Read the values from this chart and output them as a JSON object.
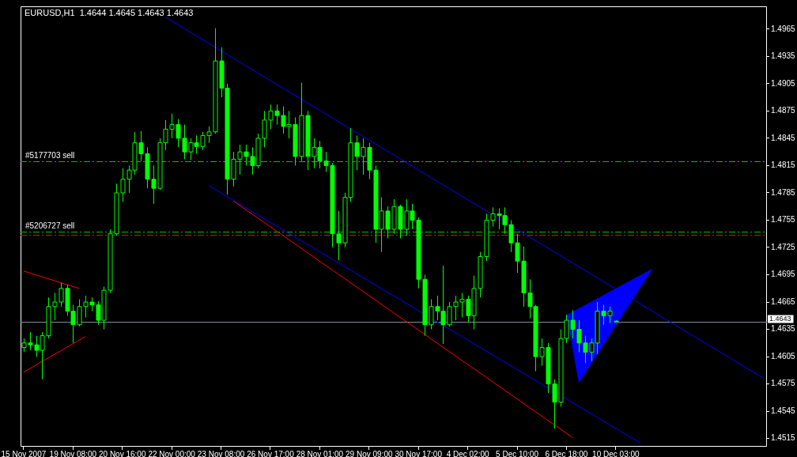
{
  "chart_data": {
    "type": "candlestick",
    "title": "EURUSD,H1  1.4644 1.4645 1.4643 1.4643",
    "color": "#00ff00",
    "categories": [
      "15 Nov 2007",
      null,
      null,
      null,
      null,
      null,
      null,
      null,
      "19 Nov 08:00",
      null,
      null,
      null,
      null,
      null,
      null,
      null,
      "20 Nov 16:00",
      null,
      null,
      null,
      null,
      null,
      null,
      null,
      "22 Nov 00:00",
      null,
      null,
      null,
      null,
      null,
      null,
      null,
      "23 Nov 08:00",
      null,
      null,
      null,
      null,
      null,
      null,
      null,
      "26 Nov 17:00",
      null,
      null,
      null,
      null,
      null,
      null,
      null,
      "28 Nov 01:00",
      null,
      null,
      null,
      null,
      null,
      null,
      null,
      "29 Nov 09:00",
      null,
      null,
      null,
      null,
      null,
      null,
      null,
      "30 Nov 17:00",
      null,
      null,
      null,
      null,
      null,
      null,
      null,
      "4 Dec 02:00",
      null,
      null,
      null,
      null,
      null,
      null,
      null,
      "5 Dec 10:00",
      null,
      null,
      null,
      null,
      null,
      null,
      null,
      "6 Dec 18:00",
      null,
      null,
      null,
      null,
      null,
      null,
      null,
      "10 Dec 03:00",
      null,
      null,
      null,
      null,
      null,
      null,
      null,
      null,
      null,
      null,
      null,
      null,
      null,
      null,
      null,
      null,
      null,
      null,
      null,
      null,
      null,
      null,
      null,
      null
    ],
    "ohlc": [
      [
        1.4615,
        1.4625,
        1.461,
        1.462
      ],
      [
        1.462,
        1.4632,
        1.4612,
        1.4618
      ],
      [
        1.4618,
        1.4628,
        1.4605,
        1.4612
      ],
      [
        1.4612,
        1.4632,
        1.458,
        1.4628
      ],
      [
        1.4628,
        1.467,
        1.4625,
        1.466
      ],
      [
        1.466,
        1.4675,
        1.4645,
        1.4665
      ],
      [
        1.4665,
        1.4686,
        1.466,
        1.468
      ],
      [
        1.468,
        1.4684,
        1.465,
        1.4655
      ],
      [
        1.4655,
        1.4662,
        1.462,
        1.464
      ],
      [
        1.464,
        1.4668,
        1.4638,
        1.466
      ],
      [
        1.466,
        1.4672,
        1.4648,
        1.4665
      ],
      [
        1.4665,
        1.467,
        1.4655,
        1.4662
      ],
      [
        1.4662,
        1.4666,
        1.464,
        1.4645
      ],
      [
        1.4645,
        1.4682,
        1.4635,
        1.4678
      ],
      [
        1.4678,
        1.4745,
        1.4675,
        1.474
      ],
      [
        1.474,
        1.4795,
        1.4738,
        1.4785
      ],
      [
        1.4785,
        1.4812,
        1.4775,
        1.48
      ],
      [
        1.48,
        1.4815,
        1.4785,
        1.481
      ],
      [
        1.481,
        1.4852,
        1.4805,
        1.484
      ],
      [
        1.484,
        1.4853,
        1.482,
        1.4828
      ],
      [
        1.4828,
        1.4835,
        1.479,
        1.48
      ],
      [
        1.48,
        1.4815,
        1.4773,
        1.479
      ],
      [
        1.479,
        1.4845,
        1.4788,
        1.484
      ],
      [
        1.484,
        1.4865,
        1.4832,
        1.4855
      ],
      [
        1.4855,
        1.4872,
        1.4845,
        1.486
      ],
      [
        1.486,
        1.4866,
        1.4835,
        1.4845
      ],
      [
        1.4845,
        1.486,
        1.4822,
        1.483
      ],
      [
        1.483,
        1.4845,
        1.4821,
        1.484
      ],
      [
        1.484,
        1.4848,
        1.4828,
        1.4836
      ],
      [
        1.4836,
        1.4852,
        1.4832,
        1.4848
      ],
      [
        1.4848,
        1.4858,
        1.484,
        1.4852
      ],
      [
        1.4852,
        1.4966,
        1.485,
        1.493
      ],
      [
        1.493,
        1.4945,
        1.489,
        1.49
      ],
      [
        1.49,
        1.4905,
        1.4783,
        1.48
      ],
      [
        1.48,
        1.483,
        1.4792,
        1.4822
      ],
      [
        1.4822,
        1.4838,
        1.4805,
        1.483
      ],
      [
        1.483,
        1.4838,
        1.4815,
        1.4825
      ],
      [
        1.4825,
        1.4835,
        1.4805,
        1.4815
      ],
      [
        1.4815,
        1.485,
        1.4812,
        1.4845
      ],
      [
        1.4845,
        1.4875,
        1.4835,
        1.4865
      ],
      [
        1.4865,
        1.4882,
        1.4855,
        1.4875
      ],
      [
        1.4875,
        1.4882,
        1.486,
        1.487
      ],
      [
        1.487,
        1.488,
        1.485,
        1.4858
      ],
      [
        1.4858,
        1.4875,
        1.4845,
        1.486
      ],
      [
        1.486,
        1.4868,
        1.4815,
        1.4825
      ],
      [
        1.4825,
        1.4906,
        1.482,
        1.487
      ],
      [
        1.487,
        1.4875,
        1.481,
        1.4825
      ],
      [
        1.4825,
        1.4845,
        1.4812,
        1.4835
      ],
      [
        1.4835,
        1.4842,
        1.4812,
        1.482
      ],
      [
        1.482,
        1.483,
        1.4808,
        1.4815
      ],
      [
        1.4815,
        1.4818,
        1.4725,
        1.474
      ],
      [
        1.474,
        1.4765,
        1.4711,
        1.473
      ],
      [
        1.473,
        1.4785,
        1.4725,
        1.478
      ],
      [
        1.478,
        1.4856,
        1.4775,
        1.484
      ],
      [
        1.484,
        1.4848,
        1.481,
        1.4825
      ],
      [
        1.4825,
        1.4845,
        1.4805,
        1.4835
      ],
      [
        1.4835,
        1.484,
        1.48,
        1.481
      ],
      [
        1.481,
        1.4815,
        1.473,
        1.4745
      ],
      [
        1.4745,
        1.478,
        1.472,
        1.4765
      ],
      [
        1.4765,
        1.477,
        1.4735,
        1.4745
      ],
      [
        1.4745,
        1.4778,
        1.474,
        1.477
      ],
      [
        1.477,
        1.4772,
        1.4735,
        1.4745
      ],
      [
        1.4745,
        1.4778,
        1.4738,
        1.4765
      ],
      [
        1.4765,
        1.4773,
        1.4745,
        1.4755
      ],
      [
        1.4755,
        1.4758,
        1.468,
        1.469
      ],
      [
        1.469,
        1.4695,
        1.4628,
        1.464
      ],
      [
        1.464,
        1.4668,
        1.4635,
        1.466
      ],
      [
        1.466,
        1.4672,
        1.4645,
        1.4655
      ],
      [
        1.4655,
        1.4705,
        1.4619,
        1.464
      ],
      [
        1.464,
        1.4665,
        1.4638,
        1.466
      ],
      [
        1.466,
        1.4672,
        1.4645,
        1.4665
      ],
      [
        1.4665,
        1.4675,
        1.4648,
        1.4668
      ],
      [
        1.4668,
        1.4672,
        1.4643,
        1.465
      ],
      [
        1.465,
        1.4694,
        1.4635,
        1.468
      ],
      [
        1.468,
        1.472,
        1.467,
        1.4715
      ],
      [
        1.4715,
        1.4762,
        1.471,
        1.4755
      ],
      [
        1.4755,
        1.4769,
        1.4748,
        1.4762
      ],
      [
        1.4762,
        1.4768,
        1.4745,
        1.476
      ],
      [
        1.476,
        1.4769,
        1.474,
        1.475
      ],
      [
        1.475,
        1.4755,
        1.472,
        1.473
      ],
      [
        1.473,
        1.474,
        1.4697,
        1.471
      ],
      [
        1.471,
        1.4726,
        1.466,
        1.4675
      ],
      [
        1.4675,
        1.469,
        1.4647,
        1.466
      ],
      [
        1.466,
        1.4662,
        1.4589,
        1.4605
      ],
      [
        1.4605,
        1.4625,
        1.4595,
        1.4615
      ],
      [
        1.4615,
        1.462,
        1.4565,
        1.4575
      ],
      [
        1.4575,
        1.458,
        1.4526,
        1.4555
      ],
      [
        1.4555,
        1.4635,
        1.455,
        1.4625
      ],
      [
        1.4625,
        1.4651,
        1.462,
        1.4645
      ],
      [
        1.4645,
        1.4656,
        1.4625,
        1.4635
      ],
      [
        1.4635,
        1.4645,
        1.461,
        1.462
      ],
      [
        1.462,
        1.4628,
        1.4598,
        1.461
      ],
      [
        1.461,
        1.4625,
        1.46,
        1.462
      ],
      [
        1.462,
        1.4665,
        1.4608,
        1.4655
      ],
      [
        1.4655,
        1.4662,
        1.464,
        1.465
      ],
      [
        1.465,
        1.466,
        1.4642,
        1.4655
      ],
      [
        1.4644,
        1.4645,
        1.4643,
        1.4643
      ],
      null,
      null,
      null,
      null,
      null,
      null,
      null,
      null,
      null,
      null,
      null,
      null,
      null,
      null,
      null,
      null,
      null,
      null,
      null,
      null,
      null,
      null,
      null,
      null
    ],
    "series": [
      {
        "type": "line",
        "color": "#0000ff",
        "values": [
          null,
          null,
          null,
          null,
          null,
          null,
          null,
          null,
          null,
          null,
          null,
          null,
          null,
          null,
          null,
          null,
          null,
          null,
          null,
          null,
          null,
          null,
          null,
          1.4978,
          null,
          null,
          null,
          null,
          null,
          null,
          null,
          null,
          null,
          null,
          null,
          null,
          null,
          null,
          null,
          null,
          null,
          null,
          null,
          null,
          null,
          null,
          null,
          null,
          null,
          null,
          null,
          null,
          null,
          null,
          null,
          null,
          null,
          null,
          null,
          null,
          null,
          null,
          null,
          null,
          null,
          null,
          null,
          null,
          null,
          null,
          null,
          null,
          null,
          null,
          null,
          null,
          null,
          null,
          null,
          null,
          null,
          null,
          null,
          null,
          null,
          null,
          null,
          null,
          null,
          null,
          null,
          null,
          null,
          null,
          null,
          null,
          null,
          null,
          null,
          null,
          null,
          null,
          null,
          null,
          null,
          null,
          null,
          null,
          null,
          null,
          null,
          null,
          null,
          null,
          null,
          null,
          null,
          null,
          null,
          null,
          1.4581
        ]
      },
      {
        "type": "line",
        "color": "#0000ff",
        "values": [
          null,
          null,
          null,
          null,
          null,
          null,
          null,
          null,
          null,
          null,
          null,
          null,
          null,
          null,
          null,
          null,
          null,
          null,
          null,
          null,
          null,
          null,
          null,
          null,
          null,
          null,
          null,
          null,
          null,
          null,
          1.4793,
          null,
          null,
          null,
          null,
          null,
          null,
          null,
          null,
          null,
          null,
          null,
          null,
          null,
          null,
          null,
          null,
          null,
          null,
          null,
          null,
          null,
          null,
          null,
          null,
          null,
          null,
          null,
          null,
          null,
          null,
          null,
          null,
          null,
          null,
          null,
          null,
          null,
          null,
          null,
          null,
          null,
          null,
          null,
          null,
          null,
          null,
          null,
          null,
          null,
          null,
          null,
          null,
          null,
          null,
          null,
          null,
          null,
          null,
          null,
          null,
          null,
          null,
          null,
          null,
          null,
          null,
          null,
          null,
          null,
          1.451,
          null,
          null,
          null,
          null,
          null,
          null,
          null,
          null,
          null,
          null,
          null,
          null,
          null,
          null,
          null,
          null,
          null,
          null,
          null,
          null
        ]
      },
      {
        "type": "line",
        "color": "#ff0000",
        "values": [
          null,
          null,
          null,
          null,
          null,
          null,
          null,
          null,
          null,
          null,
          null,
          null,
          null,
          null,
          null,
          null,
          null,
          null,
          null,
          null,
          null,
          null,
          null,
          null,
          null,
          null,
          null,
          null,
          null,
          null,
          null,
          null,
          null,
          null,
          1.4776,
          null,
          null,
          null,
          null,
          null,
          null,
          null,
          null,
          null,
          null,
          null,
          null,
          null,
          null,
          null,
          null,
          null,
          null,
          null,
          null,
          null,
          null,
          null,
          null,
          null,
          null,
          null,
          null,
          null,
          null,
          null,
          null,
          null,
          null,
          null,
          null,
          null,
          null,
          null,
          null,
          null,
          null,
          null,
          null,
          null,
          null,
          null,
          null,
          null,
          null,
          null,
          null,
          null,
          null,
          1.4516,
          null,
          null,
          null,
          null,
          null,
          null,
          null,
          null,
          null,
          null,
          null,
          null,
          null,
          null,
          null,
          null,
          null,
          null,
          null,
          null,
          null,
          null,
          null,
          null,
          null,
          null,
          null,
          null,
          null,
          null,
          null
        ]
      },
      {
        "type": "line",
        "color": "#ff0000",
        "values": [
          1.4699,
          null,
          null,
          null,
          null,
          null,
          null,
          null,
          null,
          1.468,
          null,
          null,
          null,
          null,
          null,
          null,
          null,
          null,
          null,
          null,
          null,
          null,
          null,
          null,
          null,
          null,
          null,
          null,
          null,
          null,
          null,
          null,
          null,
          null,
          null,
          null,
          null,
          null,
          null,
          null,
          null,
          null,
          null,
          null,
          null,
          null,
          null,
          null,
          null,
          null,
          null,
          null,
          null,
          null,
          null,
          null,
          null,
          null,
          null,
          null,
          null,
          null,
          null,
          null,
          null,
          null,
          null,
          null,
          null,
          null,
          null,
          null,
          null,
          null,
          null,
          null,
          null,
          null,
          null,
          null,
          null,
          null,
          null,
          null,
          null,
          null,
          null,
          null,
          null,
          null,
          null,
          null,
          null,
          null,
          null,
          null,
          null,
          null,
          null,
          null,
          null,
          null,
          null,
          null,
          null,
          null,
          null,
          null,
          null,
          null,
          null,
          null,
          null,
          null,
          null,
          null,
          null,
          null,
          null,
          null,
          null
        ]
      },
      {
        "type": "line",
        "color": "#ff0000",
        "values": [
          1.4588,
          null,
          null,
          null,
          null,
          null,
          null,
          null,
          null,
          null,
          1.4627,
          null,
          null,
          null,
          null,
          null,
          null,
          null,
          null,
          null,
          null,
          null,
          null,
          null,
          null,
          null,
          null,
          null,
          null,
          null,
          null,
          null,
          null,
          null,
          null,
          null,
          null,
          null,
          null,
          null,
          null,
          null,
          null,
          null,
          null,
          null,
          null,
          null,
          null,
          null,
          null,
          null,
          null,
          null,
          null,
          null,
          null,
          null,
          null,
          null,
          null,
          null,
          null,
          null,
          null,
          null,
          null,
          null,
          null,
          null,
          null,
          null,
          null,
          null,
          null,
          null,
          null,
          null,
          null,
          null,
          null,
          null,
          null,
          null,
          null,
          null,
          null,
          null,
          null,
          null,
          null,
          null,
          null,
          null,
          null,
          null,
          null,
          null,
          null,
          null,
          null,
          null,
          null,
          null,
          null,
          null,
          null,
          null,
          null,
          null,
          null,
          null,
          null,
          null,
          null,
          null,
          null,
          null,
          null,
          null,
          null
        ]
      },
      {
        "type": "line",
        "color": "#0000ff",
        "values": [
          null,
          null,
          null,
          null,
          null,
          null,
          null,
          null,
          null,
          null,
          null,
          null,
          null,
          null,
          null,
          null,
          null,
          null,
          null,
          null,
          null,
          null,
          null,
          null,
          null,
          null,
          null,
          null,
          null,
          null,
          null,
          null,
          null,
          null,
          null,
          null,
          null,
          null,
          null,
          null,
          null,
          null,
          null,
          null,
          null,
          null,
          null,
          null,
          null,
          null,
          null,
          null,
          null,
          null,
          null,
          null,
          null,
          null,
          null,
          null,
          null,
          null,
          null,
          null,
          null,
          null,
          null,
          null,
          null,
          null,
          null,
          null,
          null,
          null,
          null,
          null,
          null,
          null,
          null,
          null,
          null,
          null,
          null,
          null,
          null,
          null,
          null,
          null,
          null,
          null,
          null,
          null,
          null,
          null,
          null,
          null,
          null,
          null,
          null,
          null,
          null,
          null,
          null,
          null,
          null,
          null,
          null,
          null,
          null,
          null,
          null,
          null,
          null,
          null,
          null,
          null,
          null,
          null,
          null,
          null,
          null
        ],
        "upper": [
          null,
          null,
          null,
          null,
          null,
          null,
          null,
          null,
          null,
          null,
          null,
          null,
          null,
          null,
          null,
          null,
          null,
          null,
          null,
          null,
          null,
          null,
          null,
          null,
          null,
          null,
          null,
          null,
          null,
          null,
          null,
          null,
          null,
          null,
          null,
          null,
          null,
          null,
          null,
          null,
          null,
          null,
          null,
          null,
          null,
          null,
          null,
          null,
          null,
          null,
          null,
          null,
          null,
          null,
          null,
          null,
          null,
          null,
          null,
          null,
          null,
          null,
          null,
          null,
          null,
          null,
          null,
          null,
          null,
          null,
          null,
          null,
          null,
          null,
          null,
          null,
          null,
          null,
          null,
          null,
          null,
          null,
          null,
          null,
          null,
          null,
          null,
          null,
          1.4651,
          null,
          1.4658,
          null,
          null,
          null,
          null,
          null,
          null,
          null,
          null,
          null,
          null,
          null,
          1.4702,
          null,
          null,
          null,
          null,
          null,
          null,
          null,
          null,
          null,
          null,
          null,
          null,
          null,
          null,
          null,
          null,
          null,
          null
        ],
        "lower": [
          null,
          null,
          null,
          null,
          null,
          null,
          null,
          null,
          null,
          null,
          null,
          null,
          null,
          null,
          null,
          null,
          null,
          null,
          null,
          null,
          null,
          null,
          null,
          null,
          null,
          null,
          null,
          null,
          null,
          null,
          null,
          null,
          null,
          null,
          null,
          null,
          null,
          null,
          null,
          null,
          null,
          null,
          null,
          null,
          null,
          null,
          null,
          null,
          null,
          null,
          null,
          null,
          null,
          null,
          null,
          null,
          null,
          null,
          null,
          null,
          null,
          null,
          null,
          null,
          null,
          null,
          null,
          null,
          null,
          null,
          null,
          null,
          null,
          null,
          null,
          null,
          null,
          null,
          null,
          null,
          null,
          null,
          null,
          null,
          null,
          null,
          null,
          null,
          1.4651,
          null,
          1.4576,
          null,
          null,
          null,
          null,
          null,
          null,
          null,
          null,
          null,
          null,
          null,
          1.4702,
          null,
          null,
          null,
          null,
          null,
          null,
          null,
          null,
          null,
          null,
          null,
          null,
          null,
          null,
          null,
          null,
          null,
          null
        ]
      }
    ],
    "ref_lines": [
      {
        "axis": "y",
        "value": 1.482,
        "label": "#5177703 sell",
        "color": "#00c000",
        "line_style": "dashed"
      },
      {
        "axis": "y",
        "value": 1.4742,
        "label": "#5206727 sell",
        "color": "#00c000",
        "line_style": "dashed"
      },
      {
        "axis": "y",
        "value": 1.4739,
        "color": "#ff0000",
        "line_style": "dashed"
      },
      {
        "axis": "y",
        "value": 1.4643,
        "label": "1.4643",
        "color": "#8090a0",
        "line_style": "solid"
      }
    ],
    "ylim": [
      1.4506,
      1.499
    ],
    "yticks": [
      1.4515,
      1.4545,
      1.4575,
      1.4605,
      1.4635,
      1.4665,
      1.4695,
      1.4725,
      1.4755,
      1.4785,
      1.4815,
      1.4845,
      1.4875,
      1.4905,
      1.4935,
      1.4965
    ],
    "grid": false,
    "legend": false
  }
}
